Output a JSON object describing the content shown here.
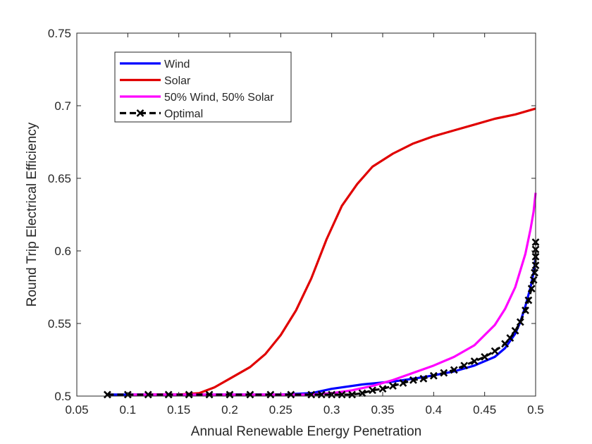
{
  "chart_data": {
    "type": "line",
    "xlabel": "Annual Renewable Energy Penetration",
    "ylabel": "Round Trip Electrical Efficiency",
    "xlim": [
      0.05,
      0.5
    ],
    "ylim": [
      0.5,
      0.75
    ],
    "xticks": [
      "0.05",
      "0.1",
      "0.15",
      "0.2",
      "0.25",
      "0.3",
      "0.35",
      "0.4",
      "0.45",
      "0.5"
    ],
    "yticks": [
      "0.5",
      "0.55",
      "0.6",
      "0.65",
      "0.7",
      "0.75"
    ],
    "grid": false,
    "legend_position": "top-left",
    "series": [
      {
        "name": "Wind",
        "color": "#0000ff",
        "x": [
          0.08,
          0.15,
          0.2,
          0.25,
          0.28,
          0.3,
          0.33,
          0.36,
          0.39,
          0.42,
          0.44,
          0.46,
          0.47,
          0.48,
          0.485,
          0.49,
          0.495,
          0.498,
          0.5
        ],
        "y": [
          0.501,
          0.501,
          0.501,
          0.501,
          0.502,
          0.505,
          0.508,
          0.51,
          0.513,
          0.517,
          0.521,
          0.527,
          0.533,
          0.543,
          0.551,
          0.562,
          0.575,
          0.585,
          0.595
        ]
      },
      {
        "name": "Solar",
        "color": "#e00000",
        "x": [
          0.12,
          0.15,
          0.17,
          0.185,
          0.2,
          0.22,
          0.235,
          0.25,
          0.265,
          0.28,
          0.295,
          0.31,
          0.325,
          0.34,
          0.36,
          0.38,
          0.4,
          0.42,
          0.44,
          0.46,
          0.48,
          0.5
        ],
        "y": [
          0.501,
          0.501,
          0.502,
          0.506,
          0.512,
          0.52,
          0.529,
          0.542,
          0.559,
          0.581,
          0.608,
          0.631,
          0.646,
          0.658,
          0.667,
          0.674,
          0.679,
          0.683,
          0.687,
          0.691,
          0.694,
          0.698
        ]
      },
      {
        "name": "50% Wind, 50% Solar",
        "color": "#ff00ff",
        "x": [
          0.1,
          0.2,
          0.25,
          0.28,
          0.3,
          0.32,
          0.34,
          0.36,
          0.38,
          0.4,
          0.42,
          0.44,
          0.46,
          0.47,
          0.48,
          0.49,
          0.495,
          0.498,
          0.5
        ],
        "y": [
          0.501,
          0.501,
          0.501,
          0.501,
          0.502,
          0.504,
          0.507,
          0.511,
          0.516,
          0.521,
          0.527,
          0.535,
          0.549,
          0.56,
          0.575,
          0.598,
          0.615,
          0.627,
          0.64
        ]
      },
      {
        "name": "Optimal",
        "color": "#000000",
        "x": [
          0.08,
          0.1,
          0.12,
          0.14,
          0.16,
          0.18,
          0.2,
          0.22,
          0.24,
          0.26,
          0.28,
          0.29,
          0.3,
          0.31,
          0.32,
          0.33,
          0.34,
          0.35,
          0.36,
          0.37,
          0.38,
          0.39,
          0.4,
          0.41,
          0.42,
          0.43,
          0.44,
          0.45,
          0.46,
          0.47,
          0.475,
          0.48,
          0.485,
          0.49,
          0.493,
          0.496,
          0.498,
          0.499,
          0.5,
          0.5,
          0.5,
          0.5
        ],
        "y": [
          0.501,
          0.501,
          0.501,
          0.501,
          0.501,
          0.501,
          0.501,
          0.501,
          0.501,
          0.501,
          0.501,
          0.501,
          0.501,
          0.501,
          0.501,
          0.502,
          0.504,
          0.505,
          0.507,
          0.509,
          0.511,
          0.512,
          0.514,
          0.516,
          0.518,
          0.521,
          0.524,
          0.527,
          0.531,
          0.536,
          0.54,
          0.545,
          0.551,
          0.559,
          0.566,
          0.574,
          0.58,
          0.585,
          0.59,
          0.596,
          0.601,
          0.606
        ]
      }
    ]
  }
}
